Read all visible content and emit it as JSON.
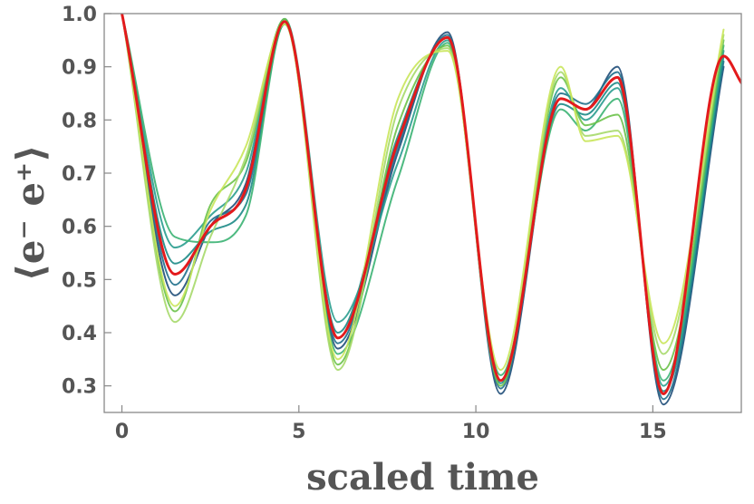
{
  "chart_data": {
    "type": "line",
    "xlabel": "scaled time",
    "ylabel": "⟨e⁻ e⁺⟩",
    "xlim": [
      -0.5,
      17.5
    ],
    "ylim": [
      0.25,
      1.0
    ],
    "x_ticks": [
      0,
      5,
      10,
      15
    ],
    "x_tick_labels": [
      "0",
      "5",
      "10",
      "15"
    ],
    "y_ticks": [
      0.3,
      0.4,
      0.5,
      0.6,
      0.7,
      0.8,
      0.9,
      1.0
    ],
    "y_tick_labels": [
      "0.3",
      "0.4",
      "0.5",
      "0.6",
      "0.7",
      "0.8",
      "0.9",
      "1.0"
    ],
    "frame": true,
    "grid": false,
    "legend": "none",
    "mean_color": "#e31a1c",
    "ensemble_colors": [
      "#1f4e79",
      "#1f6f8b",
      "#1c8a86",
      "#2a9d8f",
      "#3bb273",
      "#6cc24a",
      "#a6d96a",
      "#c9e65a"
    ],
    "key_points": {
      "x": [
        0,
        1.5,
        2.5,
        3.5,
        4.6,
        6.1,
        7.8,
        9.2,
        10.7,
        12.4,
        13.1,
        14.0,
        15.3,
        17.0,
        17.5
      ],
      "y": [
        1.0,
        0.51,
        0.6,
        0.67,
        0.985,
        0.39,
        0.76,
        0.955,
        0.31,
        0.84,
        0.82,
        0.88,
        0.285,
        0.92,
        0.87
      ]
    },
    "series": [
      {
        "role": "ensemble",
        "color": "#1f4e79",
        "x": [
          0,
          1.5,
          2.5,
          3.5,
          4.6,
          6.1,
          7.8,
          9.2,
          10.7,
          12.4,
          13.1,
          14.0,
          15.3,
          17.0
        ],
        "y": [
          1.0,
          0.47,
          0.6,
          0.68,
          0.99,
          0.37,
          0.74,
          0.965,
          0.285,
          0.84,
          0.82,
          0.9,
          0.265,
          0.9
        ]
      },
      {
        "role": "ensemble",
        "color": "#1f6f8b",
        "x": [
          0,
          1.5,
          2.5,
          3.5,
          4.6,
          6.1,
          7.8,
          9.2,
          10.7,
          12.4,
          13.1,
          14.0,
          15.3,
          17.0
        ],
        "y": [
          1.0,
          0.49,
          0.61,
          0.66,
          0.985,
          0.38,
          0.75,
          0.96,
          0.295,
          0.85,
          0.83,
          0.89,
          0.275,
          0.91
        ]
      },
      {
        "role": "ensemble",
        "color": "#1c8a86",
        "x": [
          0,
          1.5,
          2.5,
          3.5,
          4.6,
          6.1,
          7.8,
          9.2,
          10.7,
          12.4,
          13.1,
          14.0,
          15.3,
          17.0
        ],
        "y": [
          1.0,
          0.53,
          0.59,
          0.64,
          0.98,
          0.4,
          0.77,
          0.955,
          0.305,
          0.83,
          0.81,
          0.87,
          0.29,
          0.92
        ]
      },
      {
        "role": "ensemble",
        "color": "#2a9d8f",
        "x": [
          0,
          1.5,
          2.5,
          3.5,
          4.6,
          6.1,
          7.8,
          9.2,
          10.7,
          12.4,
          13.1,
          14.0,
          15.3,
          17.0
        ],
        "y": [
          1.0,
          0.56,
          0.62,
          0.7,
          0.99,
          0.42,
          0.72,
          0.95,
          0.31,
          0.86,
          0.8,
          0.86,
          0.3,
          0.93
        ]
      },
      {
        "role": "ensemble",
        "color": "#3bb273",
        "x": [
          0,
          1.5,
          2.5,
          3.5,
          4.6,
          6.1,
          7.8,
          9.2,
          10.7,
          12.4,
          13.1,
          14.0,
          15.3,
          17.0
        ],
        "y": [
          1.0,
          0.58,
          0.57,
          0.62,
          0.98,
          0.36,
          0.69,
          0.945,
          0.32,
          0.82,
          0.78,
          0.84,
          0.31,
          0.94
        ]
      },
      {
        "role": "ensemble",
        "color": "#6cc24a",
        "x": [
          0,
          1.5,
          2.5,
          3.5,
          4.6,
          6.1,
          7.8,
          9.2,
          10.7,
          12.4,
          13.1,
          14.0,
          15.3,
          17.0
        ],
        "y": [
          1.0,
          0.44,
          0.64,
          0.72,
          0.99,
          0.34,
          0.79,
          0.94,
          0.3,
          0.88,
          0.79,
          0.81,
          0.33,
          0.95
        ]
      },
      {
        "role": "ensemble",
        "color": "#a6d96a",
        "x": [
          0,
          1.5,
          2.5,
          3.5,
          4.6,
          6.1,
          7.8,
          9.2,
          10.7,
          12.4,
          13.1,
          14.0,
          15.3,
          17.0
        ],
        "y": [
          1.0,
          0.42,
          0.58,
          0.73,
          0.985,
          0.33,
          0.82,
          0.935,
          0.31,
          0.89,
          0.77,
          0.78,
          0.36,
          0.96
        ]
      },
      {
        "role": "ensemble",
        "color": "#c9e65a",
        "x": [
          0,
          1.5,
          2.5,
          3.5,
          4.6,
          6.1,
          7.8,
          9.2,
          10.7,
          12.4,
          13.1,
          14.0,
          15.3,
          17.0
        ],
        "y": [
          1.0,
          0.45,
          0.63,
          0.75,
          0.98,
          0.35,
          0.84,
          0.93,
          0.33,
          0.9,
          0.76,
          0.77,
          0.38,
          0.97
        ]
      },
      {
        "role": "mean",
        "color": "#e31a1c",
        "x": [
          0,
          1.5,
          2.5,
          3.5,
          4.6,
          6.1,
          7.8,
          9.2,
          10.7,
          12.4,
          13.1,
          14.0,
          15.3,
          17.0,
          17.5
        ],
        "y": [
          1.0,
          0.51,
          0.6,
          0.67,
          0.985,
          0.39,
          0.76,
          0.955,
          0.31,
          0.84,
          0.82,
          0.88,
          0.285,
          0.92,
          0.87
        ]
      }
    ]
  }
}
